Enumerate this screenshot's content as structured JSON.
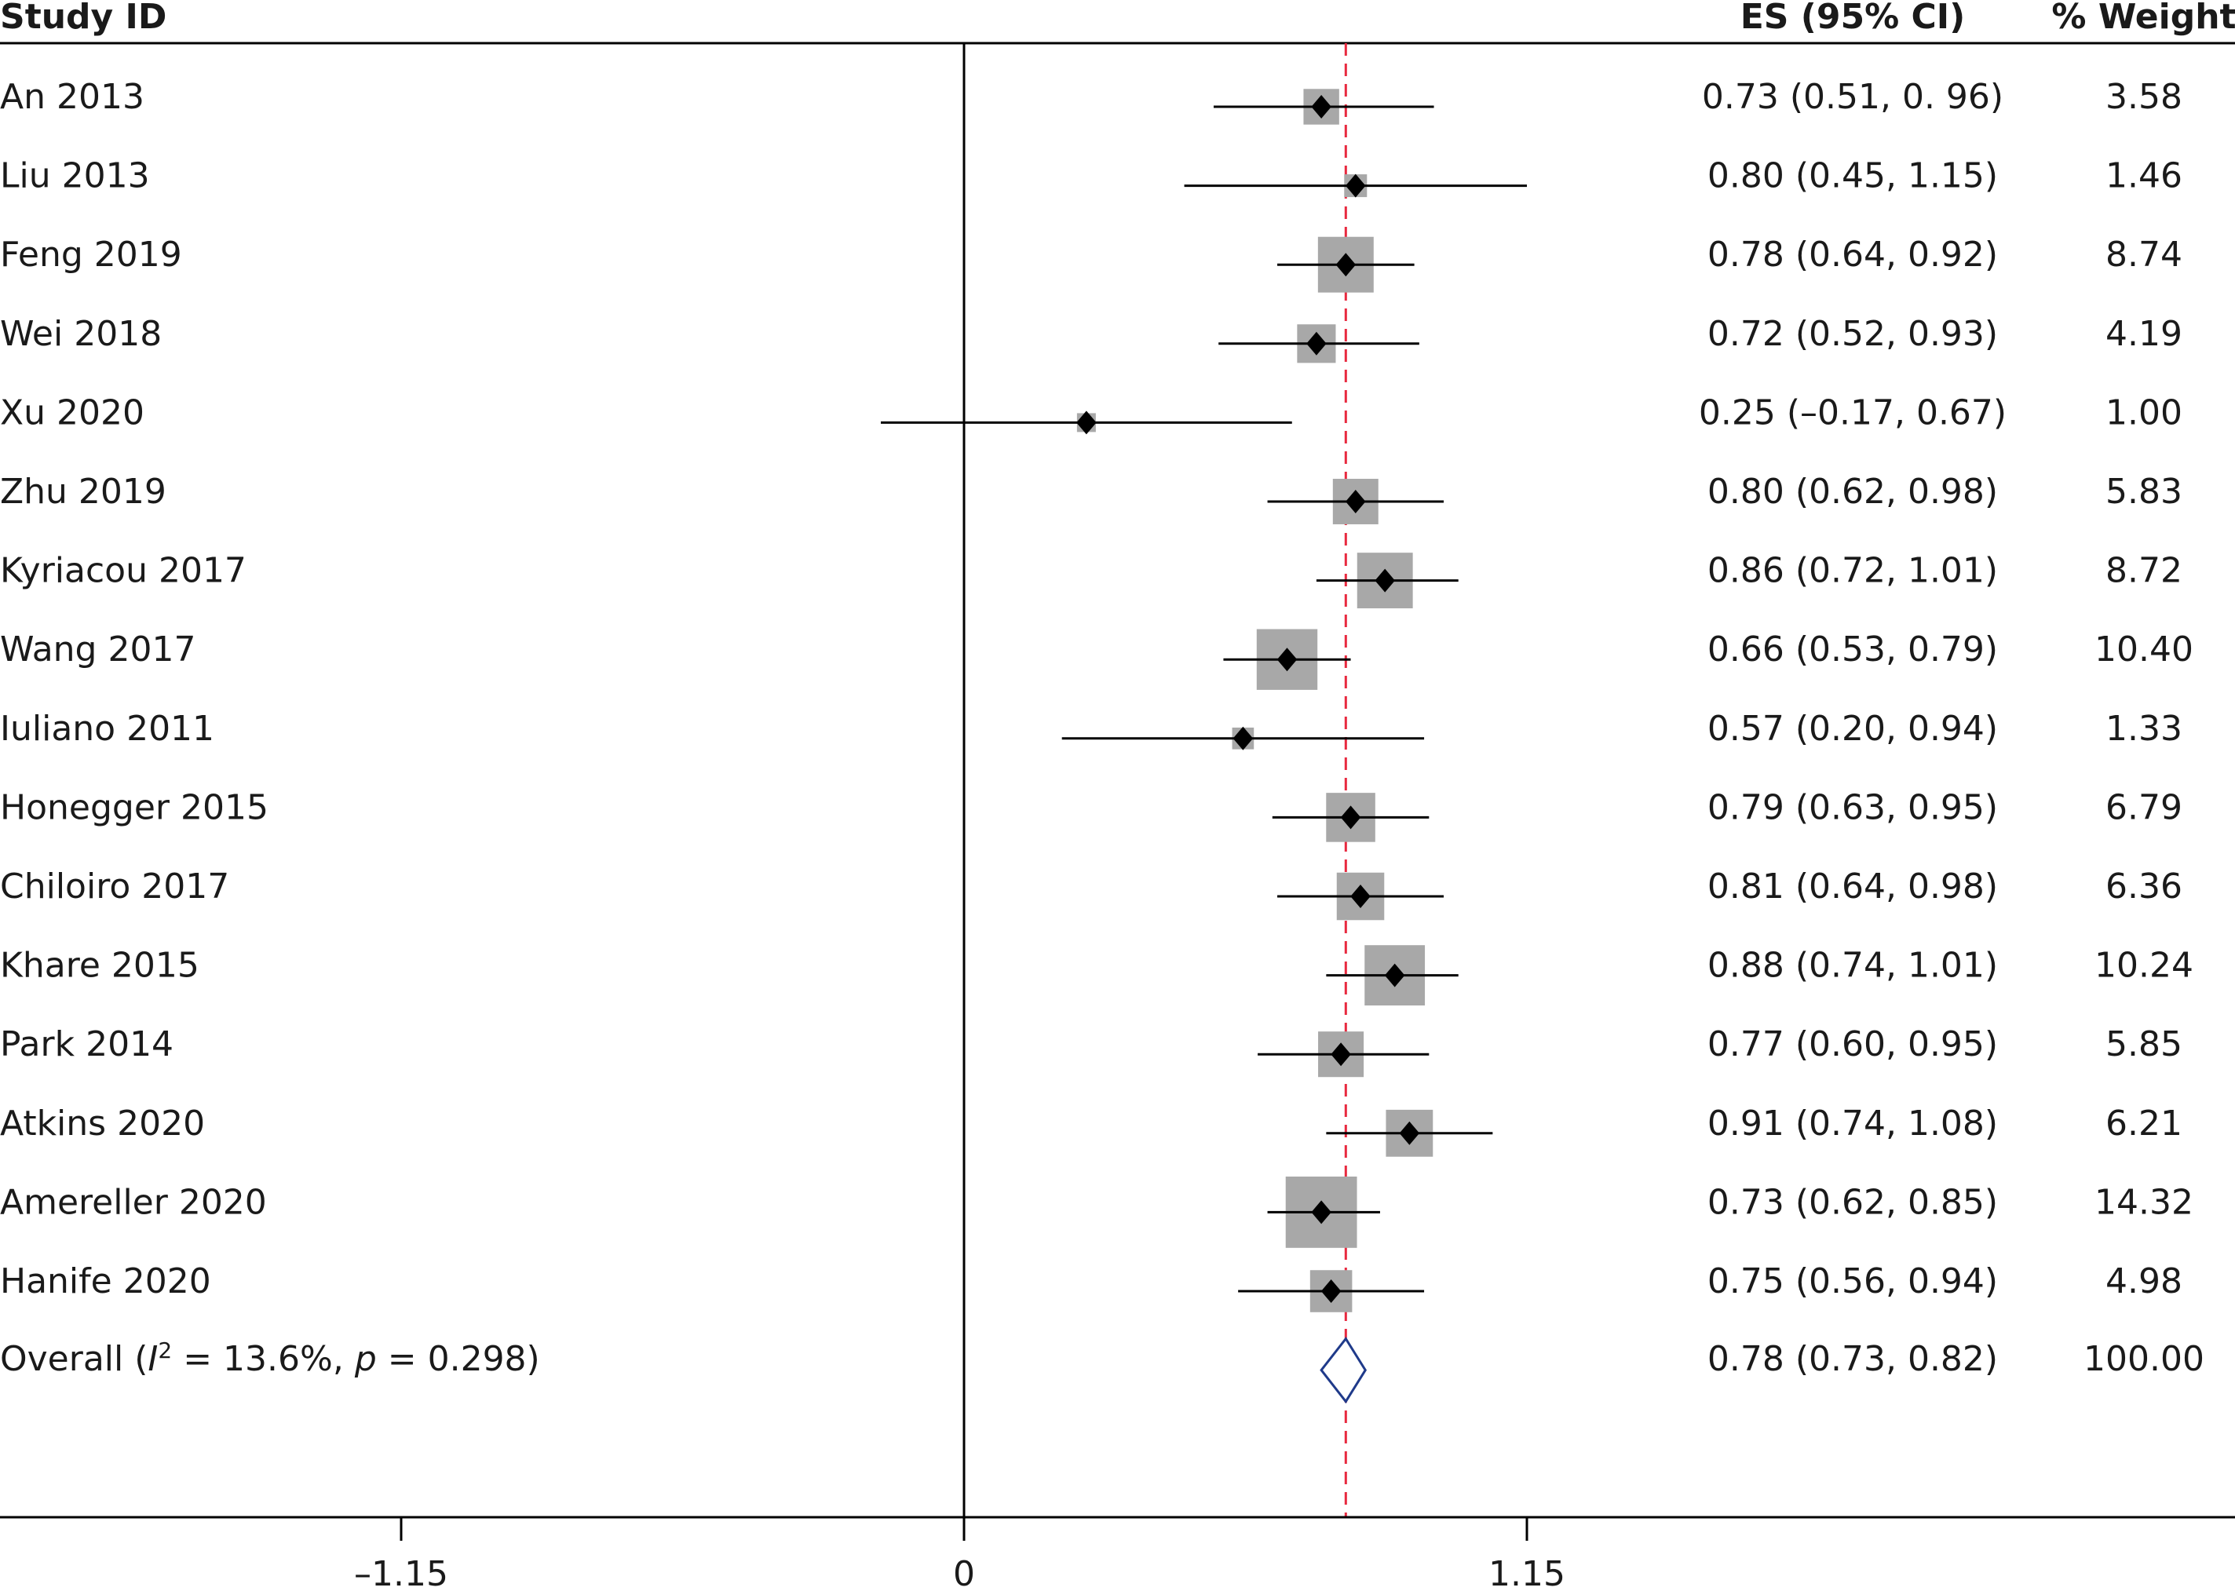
{
  "chart_data": {
    "type": "forest",
    "columns": {
      "study": "Study ID",
      "es": "ES (95% CI)",
      "weight": "% Weight"
    },
    "studies": [
      {
        "label": "An 2013",
        "es": 0.73,
        "lo": 0.51,
        "hi": 0.96,
        "es_text": "0.73 (0.51, 0. 96)",
        "weight": 3.58,
        "weight_text": "3.58"
      },
      {
        "label": "Liu 2013",
        "es": 0.8,
        "lo": 0.45,
        "hi": 1.15,
        "es_text": "0.80 (0.45, 1.15)",
        "weight": 1.46,
        "weight_text": "1.46"
      },
      {
        "label": "Feng 2019",
        "es": 0.78,
        "lo": 0.64,
        "hi": 0.92,
        "es_text": "0.78 (0.64, 0.92)",
        "weight": 8.74,
        "weight_text": "8.74"
      },
      {
        "label": "Wei 2018",
        "es": 0.72,
        "lo": 0.52,
        "hi": 0.93,
        "es_text": "0.72 (0.52, 0.93)",
        "weight": 4.19,
        "weight_text": "4.19"
      },
      {
        "label": "Xu 2020",
        "es": 0.25,
        "lo": -0.17,
        "hi": 0.67,
        "es_text": "0.25 (–0.17, 0.67)",
        "weight": 1.0,
        "weight_text": "1.00"
      },
      {
        "label": "Zhu 2019",
        "es": 0.8,
        "lo": 0.62,
        "hi": 0.98,
        "es_text": "0.80 (0.62, 0.98)",
        "weight": 5.83,
        "weight_text": "5.83"
      },
      {
        "label": "Kyriacou 2017",
        "es": 0.86,
        "lo": 0.72,
        "hi": 1.01,
        "es_text": "0.86 (0.72, 1.01)",
        "weight": 8.72,
        "weight_text": "8.72"
      },
      {
        "label": "Wang 2017",
        "es": 0.66,
        "lo": 0.53,
        "hi": 0.79,
        "es_text": "0.66 (0.53, 0.79)",
        "weight": 10.4,
        "weight_text": "10.40"
      },
      {
        "label": "Iuliano 2011",
        "es": 0.57,
        "lo": 0.2,
        "hi": 0.94,
        "es_text": "0.57 (0.20, 0.94)",
        "weight": 1.33,
        "weight_text": "1.33"
      },
      {
        "label": "Honegger 2015",
        "es": 0.79,
        "lo": 0.63,
        "hi": 0.95,
        "es_text": "0.79 (0.63, 0.95)",
        "weight": 6.79,
        "weight_text": "6.79"
      },
      {
        "label": "Chiloiro 2017",
        "es": 0.81,
        "lo": 0.64,
        "hi": 0.98,
        "es_text": "0.81 (0.64, 0.98)",
        "weight": 6.36,
        "weight_text": "6.36"
      },
      {
        "label": "Khare 2015",
        "es": 0.88,
        "lo": 0.74,
        "hi": 1.01,
        "es_text": "0.88 (0.74, 1.01)",
        "weight": 10.24,
        "weight_text": "10.24"
      },
      {
        "label": "Park 2014",
        "es": 0.77,
        "lo": 0.6,
        "hi": 0.95,
        "es_text": "0.77 (0.60, 0.95)",
        "weight": 5.85,
        "weight_text": "5.85"
      },
      {
        "label": "Atkins 2020",
        "es": 0.91,
        "lo": 0.74,
        "hi": 1.08,
        "es_text": "0.91 (0.74, 1.08)",
        "weight": 6.21,
        "weight_text": "6.21"
      },
      {
        "label": "Amereller 2020",
        "es": 0.73,
        "lo": 0.62,
        "hi": 0.85,
        "es_text": "0.73 (0.62, 0.85)",
        "weight": 14.32,
        "weight_text": "14.32"
      },
      {
        "label": "Hanife 2020",
        "es": 0.75,
        "lo": 0.56,
        "hi": 0.94,
        "es_text": "0.75 (0.56, 0.94)",
        "weight": 4.98,
        "weight_text": "4.98"
      }
    ],
    "overall": {
      "label_prefix": "Overall (",
      "label_i": "I",
      "label_sup": "2",
      "label_mid": " = 13.6%, ",
      "label_p": "p",
      "label_suffix": " = 0.298)",
      "es": 0.78,
      "lo": 0.73,
      "hi": 0.82,
      "es_text": "0.78 (0.73, 0.82)",
      "weight": 100.0,
      "weight_text": "100.00"
    },
    "x_ticks": [
      {
        "value": -1.15,
        "label": "–1.15"
      },
      {
        "value": 0,
        "label": "0"
      },
      {
        "value": 1.15,
        "label": "1.15"
      }
    ],
    "null_line": 0,
    "reference_line": 0.78,
    "xlim": [
      -1.9,
      2.5
    ],
    "colors": {
      "box": "#a8a8a8",
      "point": "#000000",
      "reference_line": "#e8293f",
      "overall_diamond": "#1f3a8a",
      "axis": "#000000"
    }
  }
}
